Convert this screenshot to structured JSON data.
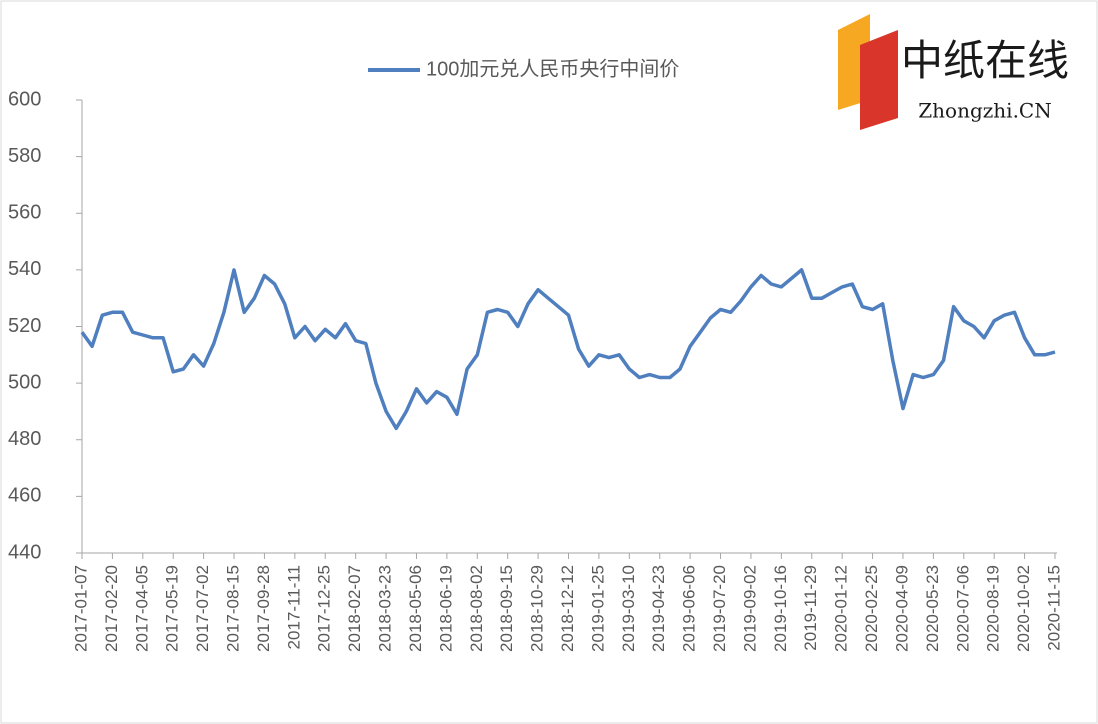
{
  "chart_data": {
    "type": "line",
    "logo": {
      "title": "中纸在线",
      "subtitle": "Zhongzhi.CN"
    },
    "categories": [
      "2017-01-07",
      null,
      null,
      "2017-02-20",
      null,
      null,
      "2017-04-05",
      null,
      null,
      "2017-05-19",
      null,
      null,
      "2017-07-02",
      null,
      null,
      "2017-08-15",
      null,
      null,
      "2017-09-28",
      null,
      null,
      "2017-11-11",
      null,
      null,
      "2017-12-25",
      null,
      null,
      "2018-02-07",
      null,
      null,
      "2018-03-23",
      null,
      null,
      "2018-05-06",
      null,
      null,
      "2018-06-19",
      null,
      null,
      "2018-08-02",
      null,
      null,
      "2018-09-15",
      null,
      null,
      "2018-10-29",
      null,
      null,
      "2018-12-12",
      null,
      null,
      "2019-01-25",
      null,
      null,
      "2019-03-10",
      null,
      null,
      "2019-04-23",
      null,
      null,
      "2019-06-06",
      null,
      null,
      "2019-07-20",
      null,
      null,
      "2019-09-02",
      null,
      null,
      "2019-10-16",
      null,
      null,
      "2019-11-29",
      null,
      null,
      "2020-01-12",
      null,
      null,
      "2020-02-25",
      null,
      null,
      "2020-04-09",
      null,
      null,
      "2020-05-23",
      null,
      null,
      "2020-07-06",
      null,
      null,
      "2020-08-19",
      null,
      null,
      "2020-10-02",
      null,
      null,
      "2020-11-15"
    ],
    "series": [
      {
        "name": "100加元兑人民币央行中间价",
        "color": "#4f7fbf",
        "values": [
          518,
          513,
          524,
          525,
          525,
          518,
          517,
          516,
          516,
          504,
          505,
          510,
          506,
          514,
          525,
          540,
          525,
          530,
          538,
          535,
          528,
          516,
          520,
          515,
          519,
          516,
          521,
          515,
          514,
          500,
          490,
          484,
          490,
          498,
          493,
          497,
          495,
          489,
          505,
          510,
          525,
          526,
          525,
          520,
          528,
          533,
          530,
          527,
          524,
          512,
          506,
          510,
          509,
          510,
          505,
          502,
          503,
          502,
          502,
          505,
          513,
          518,
          523,
          526,
          525,
          529,
          534,
          538,
          535,
          534,
          537,
          540,
          530,
          530,
          532,
          534,
          535,
          527,
          526,
          528,
          508,
          491,
          503,
          502,
          503,
          508,
          527,
          522,
          520,
          516,
          522,
          524,
          525,
          516,
          510,
          510,
          511
        ]
      }
    ],
    "ylim": [
      440,
      600
    ],
    "yticks": [
      440,
      460,
      480,
      500,
      520,
      540,
      560,
      580,
      600
    ],
    "legend": "top"
  }
}
